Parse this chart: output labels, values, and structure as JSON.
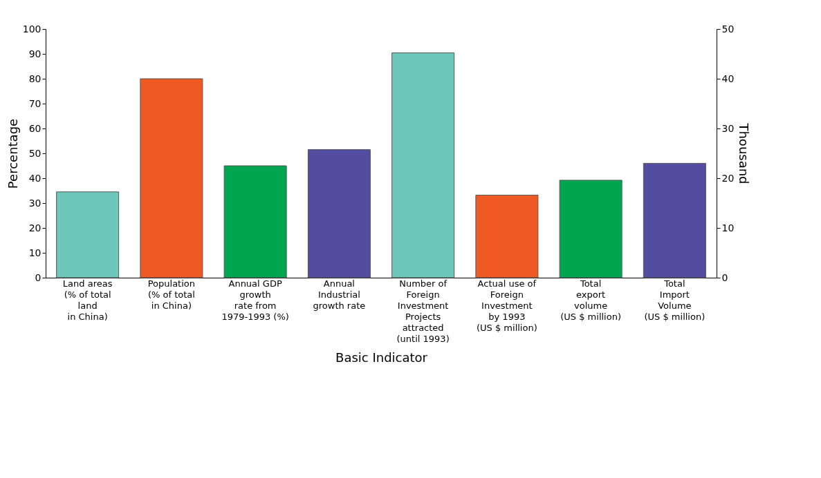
{
  "chart_data": {
    "type": "bar",
    "xlabel": "Basic Indicator",
    "ylabel": "Percentage",
    "y2label": "Thousand",
    "categories": [
      "Land areas\n(% of total\nland\nin China)",
      "Population\n(% of total\nin China)",
      "Annual GDP\ngrowth\nrate from\n1979-1993 (%)",
      "Annual\nIndustrial\ngrowth rate",
      "Number of\nForeign\nInvestment\nProjects\nattracted\n(until 1993)",
      "Actual use of\nForeign\nInvestment\nby 1993\n(US $ million)",
      "Total\nexport\nvolume\n(US $ million)",
      "Total\nImport\nVolume\n(US $ million)"
    ],
    "series": [
      {
        "axis": "y",
        "colors": [
          "#6fc7bc",
          "#ef5a24",
          "#00a550",
          "#524da0",
          null,
          null,
          null,
          null
        ],
        "values": [
          34.5,
          80,
          45,
          51.5,
          null,
          null,
          null,
          null
        ]
      },
      {
        "axis": "y2",
        "colors": [
          null,
          null,
          null,
          null,
          "#6fc7bc",
          "#ef5a24",
          "#00a550",
          "#524da0"
        ],
        "values": [
          null,
          null,
          null,
          null,
          45.2,
          16.6,
          19.6,
          23.0
        ]
      }
    ],
    "ylim": [
      0,
      100
    ],
    "yticks": [
      0,
      10,
      20,
      30,
      40,
      50,
      60,
      70,
      80,
      90,
      100
    ],
    "y2lim": [
      0,
      50
    ],
    "y2ticks": [
      0,
      10,
      20,
      30,
      40,
      50
    ],
    "grid": false
  }
}
